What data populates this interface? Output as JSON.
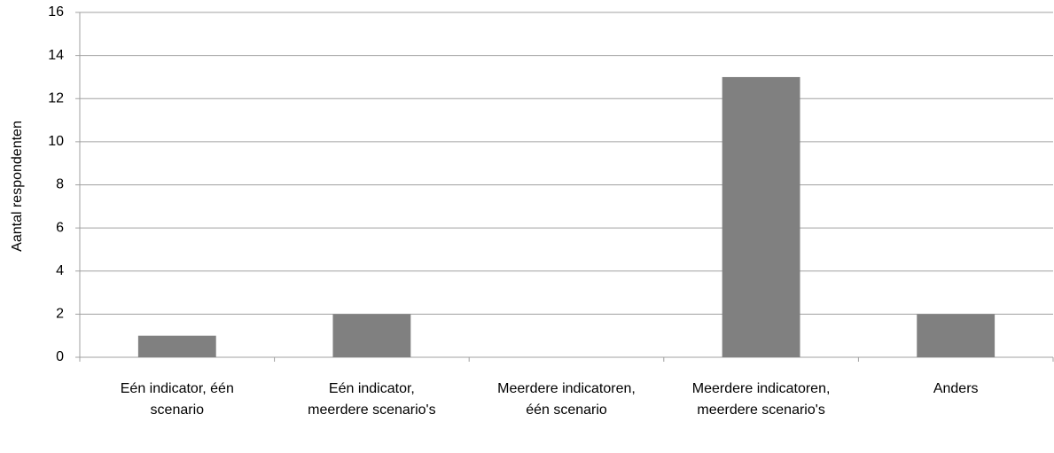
{
  "chart_data": {
    "type": "bar",
    "y_label": "Aantal respondenten",
    "categories": [
      "Eén indicator, één scenario",
      "Eén indicator, meerdere scenario's",
      "Meerdere indicatoren, één scenario",
      "Meerdere indicatoren, meerdere scenario's",
      "Anders"
    ],
    "values": [
      1,
      2,
      0,
      13,
      2
    ],
    "color": "#808080",
    "ylim": [
      0,
      16
    ],
    "yticks": [
      0,
      2,
      4,
      6,
      8,
      10,
      12,
      14,
      16
    ],
    "grid": true
  }
}
